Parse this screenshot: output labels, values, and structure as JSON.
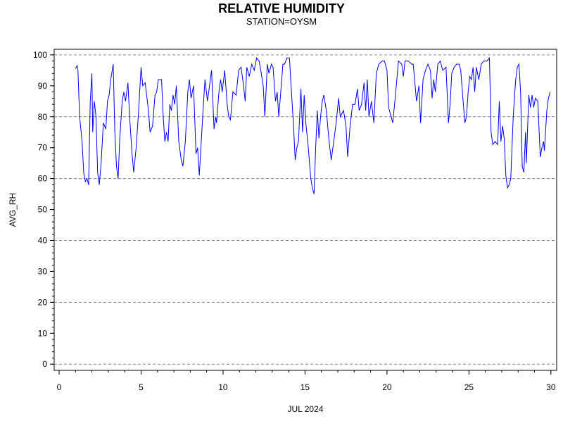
{
  "chart_data": {
    "type": "line",
    "title": "RELATIVE HUMIDITY",
    "subtitle": "STATION=OYSM",
    "xlabel": "JUL 2024",
    "ylabel": "AVG_RH",
    "color": "#0000ff",
    "xlim": [
      -0.3,
      30.35
    ],
    "xticks": [
      0,
      5,
      10,
      15,
      20,
      25,
      30
    ],
    "ylim": [
      -2,
      101.8
    ],
    "yticks": [
      0,
      10,
      20,
      30,
      40,
      50,
      60,
      70,
      80,
      90,
      100
    ],
    "ygrid": [
      0,
      20,
      40,
      60,
      80,
      100
    ],
    "x": [
      1.0,
      1.1,
      1.15,
      1.25,
      1.4,
      1.5,
      1.6,
      1.7,
      1.8,
      1.9,
      2.0,
      2.05,
      2.15,
      2.25,
      2.35,
      2.45,
      2.55,
      2.7,
      2.85,
      2.95,
      3.05,
      3.15,
      3.3,
      3.4,
      3.5,
      3.6,
      3.7,
      3.85,
      3.95,
      4.05,
      4.2,
      4.3,
      4.45,
      4.55,
      4.7,
      4.85,
      5.0,
      5.1,
      5.25,
      5.45,
      5.55,
      5.7,
      5.85,
      5.95,
      6.05,
      6.25,
      6.35,
      6.45,
      6.55,
      6.65,
      6.75,
      6.85,
      6.95,
      7.05,
      7.15,
      7.3,
      7.45,
      7.55,
      7.7,
      7.85,
      7.95,
      8.05,
      8.2,
      8.35,
      8.45,
      8.55,
      8.65,
      8.8,
      8.9,
      9.05,
      9.15,
      9.3,
      9.45,
      9.55,
      9.6,
      9.75,
      9.85,
      9.95,
      10.1,
      10.25,
      10.35,
      10.45,
      10.6,
      10.8,
      10.95,
      11.1,
      11.25,
      11.35,
      11.45,
      11.6,
      11.75,
      11.9,
      12.05,
      12.2,
      12.3,
      12.45,
      12.55,
      12.7,
      12.8,
      12.95,
      13.05,
      13.2,
      13.3,
      13.4,
      13.55,
      13.65,
      13.75,
      13.9,
      14.05,
      14.15,
      14.3,
      14.4,
      14.5,
      14.6,
      14.75,
      14.85,
      14.95,
      15.05,
      15.2,
      15.35,
      15.45,
      15.55,
      15.65,
      15.75,
      15.85,
      15.95,
      16.05,
      16.15,
      16.3,
      16.45,
      16.6,
      16.75,
      16.9,
      17.05,
      17.15,
      17.35,
      17.5,
      17.6,
      17.75,
      17.9,
      18.05,
      18.2,
      18.3,
      18.45,
      18.6,
      18.7,
      18.8,
      18.9,
      19.05,
      19.2,
      19.35,
      19.5,
      19.7,
      19.85,
      20.0,
      20.1,
      20.25,
      20.35,
      20.5,
      20.7,
      20.9,
      21.0,
      21.1,
      21.3,
      21.5,
      21.6,
      21.8,
      21.95,
      22.05,
      22.2,
      22.35,
      22.5,
      22.65,
      22.75,
      22.85,
      22.95,
      23.1,
      23.25,
      23.4,
      23.6,
      23.75,
      23.85,
      23.95,
      24.1,
      24.25,
      24.4,
      24.5,
      24.6,
      24.75,
      24.85,
      24.95,
      25.05,
      25.15,
      25.25,
      25.35,
      25.45,
      25.6,
      25.75,
      25.9,
      26.1,
      26.25,
      26.35,
      26.45,
      26.6,
      26.75,
      26.85,
      26.95,
      27.05,
      27.15,
      27.25,
      27.35,
      27.45,
      27.55,
      27.7,
      27.85,
      27.95,
      28.05,
      28.15,
      28.25,
      28.35,
      28.45,
      28.5,
      28.65,
      28.75,
      28.85,
      28.95,
      29.05,
      29.2,
      29.35,
      29.45,
      29.55,
      29.6,
      29.75,
      29.85,
      29.95
    ],
    "values": [
      95.5,
      96.5,
      95,
      80,
      72,
      62,
      59,
      60,
      58,
      85,
      94,
      75,
      85,
      80,
      62,
      58,
      64,
      78,
      76,
      85,
      87,
      92,
      97,
      75,
      64,
      60,
      73,
      85,
      88,
      85,
      91,
      80,
      68,
      62,
      70,
      82,
      96,
      90,
      91,
      82,
      75,
      77,
      87,
      88,
      92,
      92,
      80,
      72,
      75,
      72,
      84,
      82,
      87,
      84,
      90,
      72,
      66,
      64,
      72,
      88,
      92,
      86,
      90,
      68,
      70,
      61,
      70,
      84,
      92,
      85,
      89,
      95,
      76,
      80,
      78,
      88,
      92,
      88,
      95,
      84,
      80,
      79,
      88,
      87,
      95,
      96,
      90,
      85,
      96,
      93,
      97,
      95,
      99,
      98,
      95,
      90,
      80,
      97,
      94,
      97,
      96,
      85,
      88,
      80,
      90,
      97,
      97,
      99,
      99,
      90,
      77,
      66,
      70,
      72,
      89,
      75,
      87,
      78,
      70,
      60,
      57,
      55,
      70,
      82,
      73,
      80,
      85,
      87,
      82,
      73,
      66,
      72,
      78,
      86,
      80,
      82,
      77,
      67,
      77,
      84,
      84,
      89,
      82,
      84,
      91,
      82,
      92,
      80,
      85,
      78,
      94,
      97,
      98,
      98,
      95,
      83,
      80,
      78,
      86,
      98,
      97,
      93,
      98,
      98,
      97,
      97,
      85,
      90,
      78,
      92,
      95,
      97,
      95,
      86,
      92,
      88,
      97,
      98,
      95,
      96,
      78,
      84,
      94,
      96,
      97,
      97,
      95,
      88,
      78,
      80,
      88,
      93,
      92,
      96,
      88,
      96,
      92,
      97,
      98,
      98,
      99,
      75,
      71,
      72,
      71,
      85,
      72,
      77,
      73,
      61,
      57,
      58,
      60,
      80,
      92,
      96,
      97,
      88,
      64,
      62,
      75,
      65,
      87,
      83,
      87,
      83,
      86,
      85,
      67,
      70,
      72,
      69,
      82,
      86,
      88
    ]
  }
}
